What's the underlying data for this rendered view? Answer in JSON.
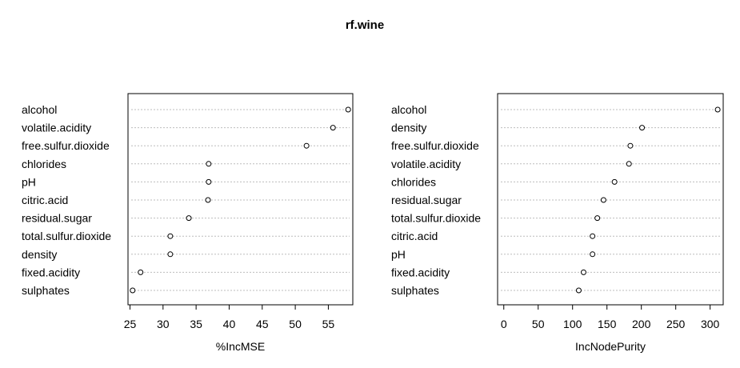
{
  "chart_data": {
    "type": "dotchart",
    "title": "rf.wine",
    "grid": "dotted horizontal guide lines",
    "panels": [
      {
        "xlabel": "%IncMSE",
        "xlim": [
          24.7,
          58.7
        ],
        "xticks": [
          25,
          30,
          35,
          40,
          45,
          50,
          55
        ],
        "categories": [
          "alcohol",
          "volatile.acidity",
          "free.sulfur.dioxide",
          "chlorides",
          "pH",
          "citric.acid",
          "residual.sugar",
          "total.sulfur.dioxide",
          "density",
          "fixed.acidity",
          "sulphates"
        ],
        "values": [
          58.0,
          55.7,
          51.7,
          36.9,
          36.9,
          36.8,
          33.9,
          31.1,
          31.1,
          26.6,
          25.4
        ]
      },
      {
        "xlabel": "IncNodePurity",
        "xlim": [
          -9,
          319
        ],
        "xticks": [
          0,
          50,
          100,
          150,
          200,
          250,
          300
        ],
        "categories": [
          "alcohol",
          "density",
          "free.sulfur.dioxide",
          "volatile.acidity",
          "chlorides",
          "residual.sugar",
          "total.sulfur.dioxide",
          "citric.acid",
          "pH",
          "fixed.acidity",
          "sulphates"
        ],
        "values": [
          311,
          201,
          184,
          182,
          161,
          145,
          136,
          129,
          129,
          116,
          109
        ]
      }
    ]
  }
}
